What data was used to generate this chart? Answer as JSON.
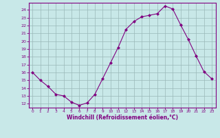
{
  "x": [
    0,
    1,
    2,
    3,
    4,
    5,
    6,
    7,
    8,
    9,
    10,
    11,
    12,
    13,
    14,
    15,
    16,
    17,
    18,
    19,
    20,
    21,
    22,
    23
  ],
  "y": [
    16,
    15,
    14.2,
    13.2,
    13,
    12.2,
    11.8,
    12.1,
    13.2,
    15.2,
    17.2,
    19.2,
    21.5,
    22.5,
    23.1,
    23.3,
    23.5,
    24.5,
    24.1,
    22.1,
    20.2,
    18.1,
    16.1,
    15.2
  ],
  "line_color": "#800080",
  "marker_color": "#800080",
  "bg_color": "#c8e8e8",
  "grid_color": "#9ab8b8",
  "xlabel": "Windchill (Refroidissement éolien,°C)",
  "xlabel_color": "#800080",
  "tick_color": "#800080",
  "yticks": [
    12,
    13,
    14,
    15,
    16,
    17,
    18,
    19,
    20,
    21,
    22,
    23,
    24
  ],
  "ylim": [
    11.5,
    24.9
  ],
  "xlim": [
    -0.5,
    23.5
  ],
  "figsize": [
    3.2,
    2.0
  ],
  "dpi": 100
}
